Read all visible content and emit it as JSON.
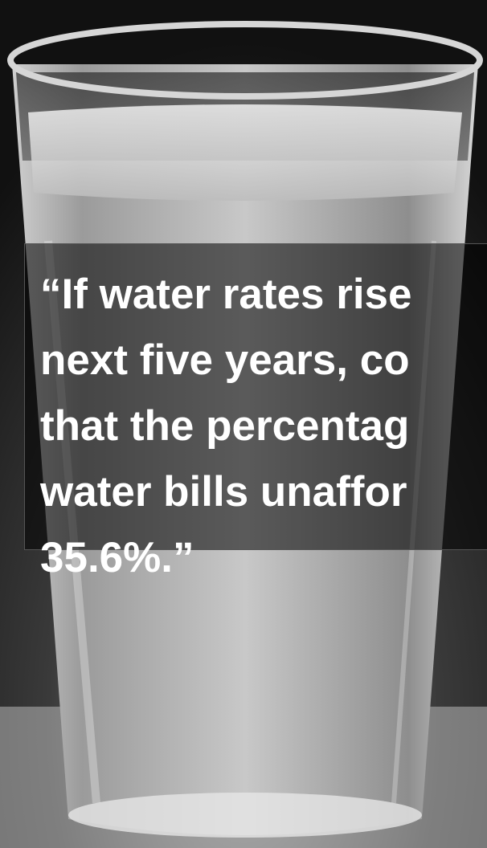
{
  "quote": {
    "lines": [
      "“If water rates rise",
      "next five years, co",
      "that the percentag",
      "water bills unaffor",
      "35.6%.”"
    ]
  }
}
